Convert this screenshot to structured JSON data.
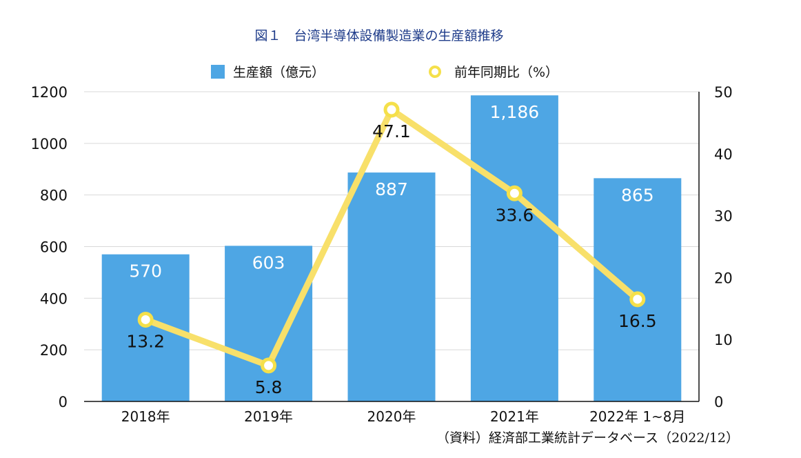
{
  "chart_data": {
    "type": "bar",
    "title": "図１　台湾半導体設備製造業の生産額推移",
    "categories": [
      "2018年",
      "2019年",
      "2020年",
      "2021年",
      "2022年 1~8月"
    ],
    "series": [
      {
        "name": "生産額（億元）",
        "type": "bar",
        "axis": "left",
        "values": [
          570,
          603,
          887,
          1186,
          865
        ],
        "labels": [
          "570",
          "603",
          "887",
          "1,186",
          "865"
        ],
        "color": "#4ea6e4"
      },
      {
        "name": "前年同期比（%）",
        "type": "line",
        "axis": "right",
        "values": [
          13.2,
          5.8,
          47.1,
          33.6,
          16.5
        ],
        "labels": [
          "13.2",
          "5.8",
          "47.1",
          "33.6",
          "16.5"
        ],
        "color": "#f8e06a"
      }
    ],
    "y_left": {
      "ylim": [
        0,
        1200
      ],
      "ticks": [
        "0",
        "200",
        "400",
        "600",
        "800",
        "1000",
        "1200"
      ]
    },
    "y_right": {
      "ylim": [
        0,
        50
      ],
      "ticks": [
        "0",
        "10",
        "20",
        "30",
        "40",
        "50"
      ]
    },
    "grid": true,
    "legend_position": "top"
  },
  "source": "（資料）経済部工業統計データベース（2022/12）"
}
